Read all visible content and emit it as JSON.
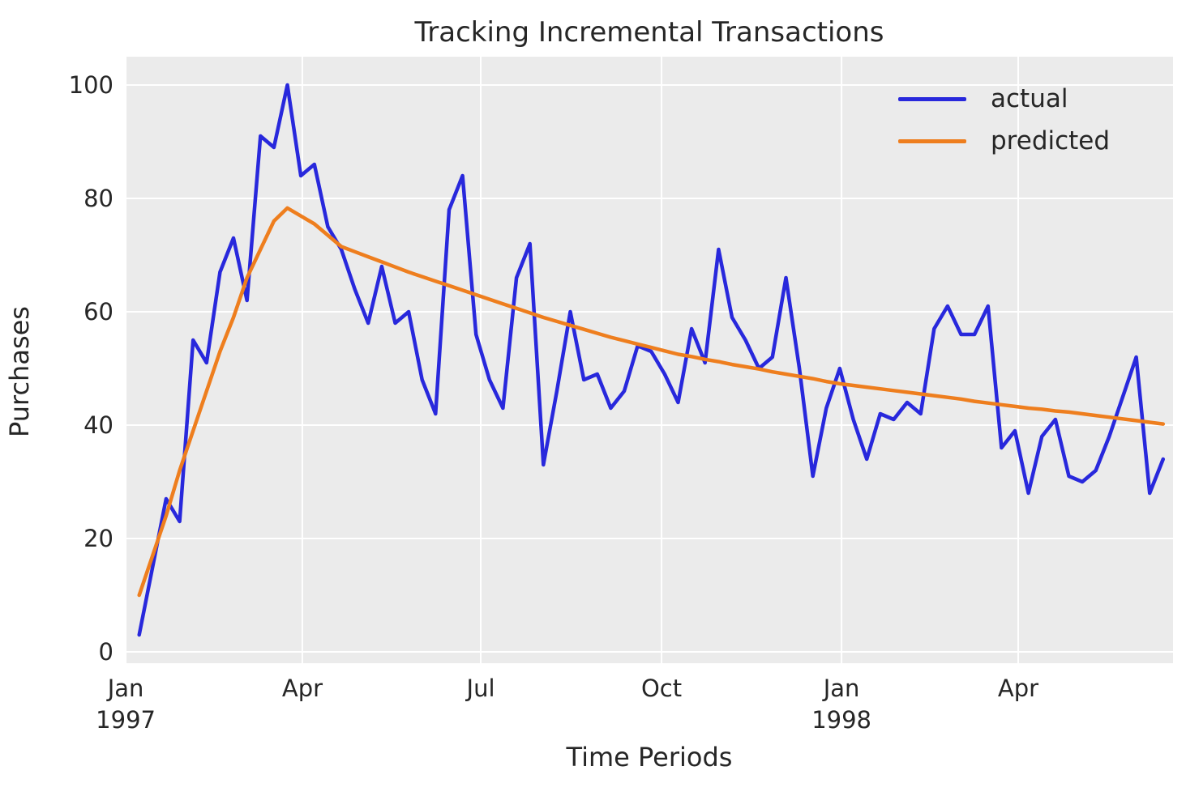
{
  "title": "Tracking Incremental Transactions",
  "chart_data": {
    "type": "line",
    "title": "Tracking Incremental Transactions",
    "xlabel": "Time Periods",
    "ylabel": "Purchases",
    "x_unit": "weeks starting Jan 1997",
    "ylim": [
      -2,
      105
    ],
    "grid": "on",
    "legend_position": "upper right",
    "background_color": "#ebebeb",
    "gridline_color": "#ffffff",
    "text_color": "#262626",
    "yticks": [
      0,
      20,
      40,
      60,
      80,
      100
    ],
    "xticks": [
      {
        "label": "Jan",
        "sublabel": "1997",
        "week": -1.0
      },
      {
        "label": "Apr",
        "sublabel": "",
        "week": 12.11
      },
      {
        "label": "Jul",
        "sublabel": "",
        "week": 25.35
      },
      {
        "label": "Oct",
        "sublabel": "",
        "week": 38.77
      },
      {
        "label": "Jan",
        "sublabel": "1998",
        "week": 52.13
      },
      {
        "label": "Apr",
        "sublabel": "",
        "week": 65.24
      }
    ],
    "series": [
      {
        "name": "actual",
        "color": "#2828dc",
        "values": [
          3,
          15,
          27,
          23,
          55,
          51,
          67,
          73,
          62,
          91,
          89,
          100,
          84,
          86,
          75,
          71,
          64,
          58,
          68,
          58,
          60,
          48,
          42,
          78,
          84,
          56,
          48,
          43,
          66,
          72,
          33,
          46,
          60,
          48,
          49,
          43,
          46,
          54,
          53,
          49,
          44,
          57,
          51,
          71,
          59,
          55,
          50,
          52,
          66,
          50,
          31,
          43,
          50,
          41,
          34,
          42,
          41,
          44,
          42,
          57,
          61,
          56,
          56,
          61,
          36,
          39,
          28,
          38,
          41,
          31,
          30,
          32,
          38,
          45,
          52,
          28,
          34
        ]
      },
      {
        "name": "predicted",
        "color": "#ee7e1e",
        "values": [
          10,
          17,
          24,
          32,
          39,
          46,
          53,
          59,
          66,
          71,
          76,
          78.3,
          76.9,
          75.5,
          73.5,
          71.5,
          70.6,
          69.7,
          68.8,
          67.9,
          67,
          66.2,
          65.4,
          64.6,
          63.8,
          63,
          62.2,
          61.4,
          60.6,
          59.8,
          59,
          58.3,
          57.6,
          56.9,
          56.2,
          55.5,
          54.9,
          54.3,
          53.7,
          53.1,
          52.5,
          52.1,
          51.6,
          51.2,
          50.7,
          50.3,
          49.9,
          49.4,
          49,
          48.6,
          48.2,
          47.7,
          47.3,
          47,
          46.7,
          46.4,
          46.1,
          45.8,
          45.5,
          45.2,
          44.9,
          44.6,
          44.2,
          43.9,
          43.6,
          43.3,
          43,
          42.8,
          42.5,
          42.3,
          42,
          41.7,
          41.4,
          41.1,
          40.8,
          40.5,
          40.2
        ]
      }
    ]
  }
}
